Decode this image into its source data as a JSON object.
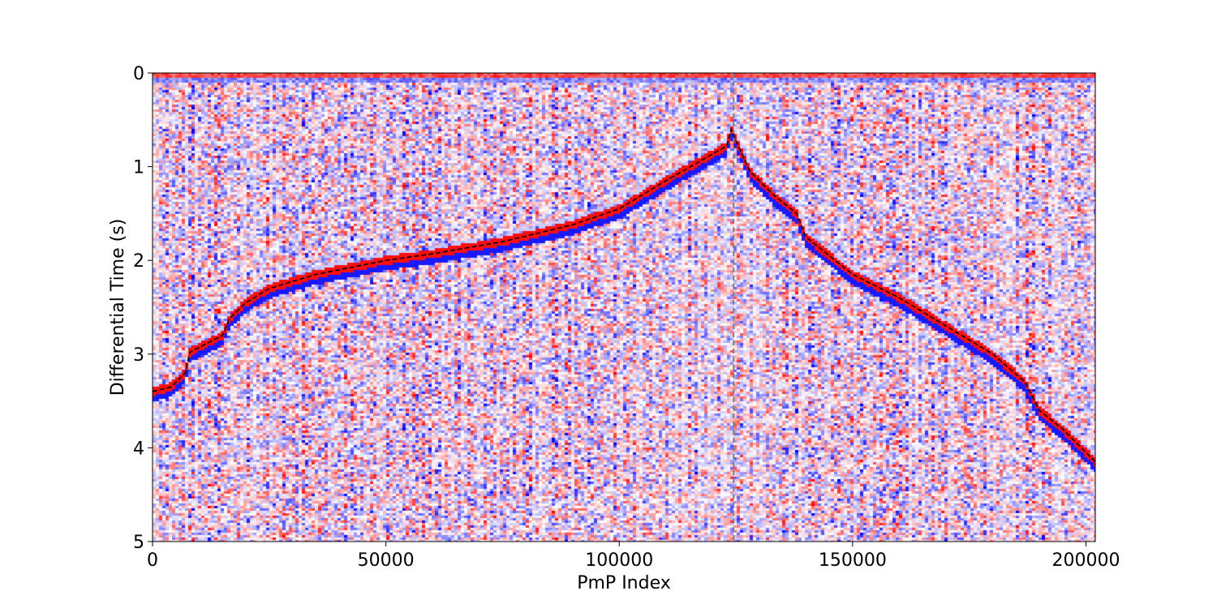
{
  "chart_data": {
    "type": "heatmap",
    "title": "",
    "xlabel": "PmP Index",
    "ylabel": "Differential Time (s)",
    "xlim": [
      0,
      202000
    ],
    "ylim": [
      5,
      0
    ],
    "x_ticks": [
      0,
      50000,
      100000,
      150000,
      200000
    ],
    "x_tick_labels": [
      "0",
      "50000",
      "100000",
      "150000",
      "200000"
    ],
    "y_ticks": [
      0,
      1,
      2,
      3,
      4,
      5
    ],
    "y_tick_labels": [
      "0",
      "1",
      "2",
      "3",
      "4",
      "5"
    ],
    "colormap": [
      "#0000ff",
      "#ffffff",
      "#ff0000"
    ],
    "grid": false,
    "picked_arrival": {
      "style": "dashed",
      "color": "#000000",
      "x": [
        0,
        4000,
        7000,
        8000,
        13000,
        15000,
        16500,
        20000,
        25000,
        35000,
        50000,
        60000,
        75000,
        90000,
        100000,
        110000,
        118000,
        123000,
        124000,
        125000,
        128000,
        133000,
        138000,
        140000,
        145000,
        150000,
        160000,
        170000,
        180000,
        187000,
        190000,
        195000,
        202000
      ],
      "y": [
        3.4,
        3.35,
        3.2,
        2.98,
        2.85,
        2.8,
        2.62,
        2.45,
        2.3,
        2.15,
        2.0,
        1.93,
        1.8,
        1.62,
        1.45,
        1.15,
        0.92,
        0.78,
        0.6,
        0.72,
        1.05,
        1.3,
        1.5,
        1.75,
        1.95,
        2.15,
        2.4,
        2.7,
        3.0,
        3.3,
        3.6,
        3.8,
        4.15
      ]
    },
    "reference_line": {
      "x": 124500,
      "style": "dashed",
      "color": "#808080"
    }
  }
}
